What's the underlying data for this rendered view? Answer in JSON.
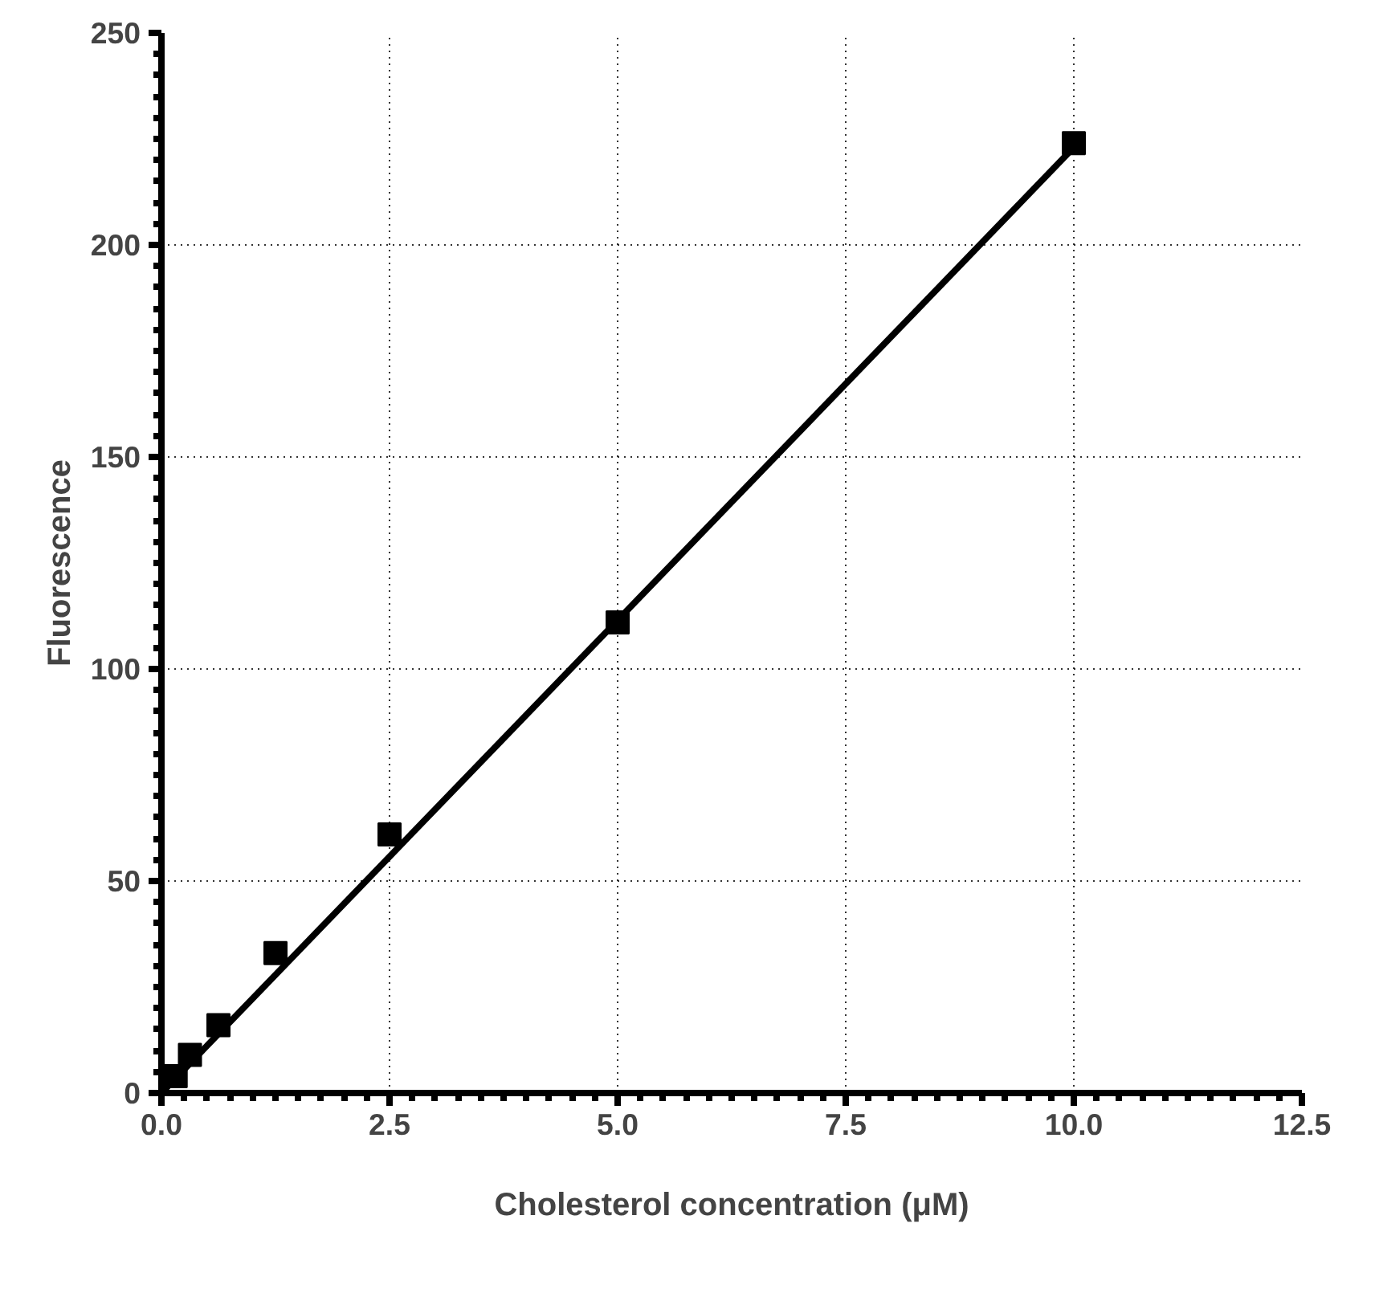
{
  "chart_data": {
    "type": "scatter",
    "xlabel": "Cholesterol concentration (μM)",
    "ylabel": "Fluorescence",
    "xlim": [
      0,
      12.5
    ],
    "xticks": [
      {
        "value": 0,
        "label": "0.0"
      },
      2.5,
      {
        "value": 5,
        "label": "5.0"
      },
      7.5,
      {
        "value": 10,
        "label": "10.0"
      },
      12.5
    ],
    "ylim": [
      0,
      250
    ],
    "yticks": [
      0,
      50,
      100,
      150,
      200,
      250
    ],
    "grid": true,
    "series": [
      {
        "color": "#000000",
        "marker": "square",
        "x": [
          0.156,
          0.3125,
          0.625,
          1.25,
          2.5,
          5,
          10
        ],
        "values": [
          4,
          9,
          16,
          33,
          61,
          111,
          224
        ]
      },
      {
        "type": "line",
        "color": "#000000",
        "x": [
          0,
          10
        ],
        "values": [
          0,
          223
        ]
      }
    ]
  }
}
